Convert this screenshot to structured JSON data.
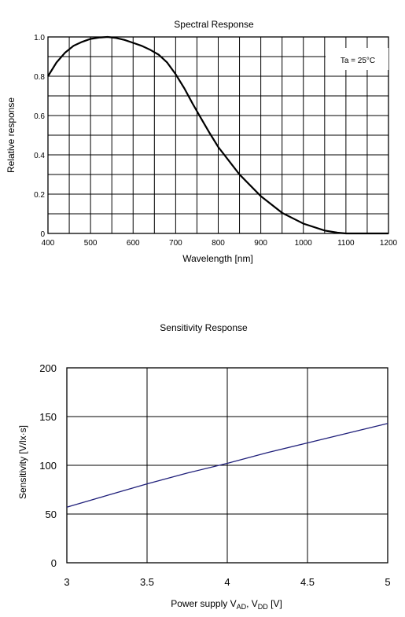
{
  "chart_data": [
    {
      "type": "line",
      "title": "Spectral Response",
      "xlabel": "Wavelength [nm]",
      "ylabel": "Relative response",
      "annotation": "Ta = 25°C",
      "xlim": [
        400,
        1200
      ],
      "ylim": [
        0,
        1.0
      ],
      "x_ticks": [
        "400",
        "500",
        "600",
        "700",
        "800",
        "900",
        "1000",
        "1100",
        "1200"
      ],
      "y_ticks": [
        "0",
        "0.2",
        "0.4",
        "0.6",
        "0.8",
        "1.0"
      ],
      "grid": true,
      "series": [
        {
          "x": [
            400,
            420,
            440,
            460,
            480,
            500,
            520,
            540,
            560,
            580,
            600,
            620,
            640,
            660,
            680,
            700,
            720,
            740,
            760,
            780,
            800,
            850,
            900,
            950,
            1000,
            1050,
            1080,
            1100,
            1150,
            1200
          ],
          "values": [
            0.8,
            0.87,
            0.92,
            0.955,
            0.975,
            0.99,
            0.997,
            1.0,
            0.995,
            0.985,
            0.97,
            0.955,
            0.935,
            0.91,
            0.87,
            0.81,
            0.74,
            0.66,
            0.585,
            0.51,
            0.44,
            0.3,
            0.19,
            0.105,
            0.05,
            0.015,
            0.004,
            0.0,
            0.0,
            0.0
          ]
        }
      ]
    },
    {
      "type": "line",
      "title": "Sensitivity Response",
      "xlabel": "Power supply V",
      "xlabel_sub1": "AD",
      "xlabel_mid": ", V",
      "xlabel_sub2": "DD",
      "xlabel_end": " [V]",
      "ylabel": "Sensitivity [V/lx·s]",
      "xlim": [
        3,
        5
      ],
      "ylim": [
        0,
        200
      ],
      "x_ticks": [
        "3",
        "3.5",
        "4",
        "4.5",
        "5"
      ],
      "y_ticks": [
        "0",
        "50",
        "100",
        "150",
        "200"
      ],
      "grid": true,
      "colors": {
        "line": "#1f1f7a"
      },
      "series": [
        {
          "x": [
            3.0,
            3.25,
            3.5,
            3.75,
            4.0,
            4.25,
            4.5,
            4.75,
            5.0
          ],
          "values": [
            57,
            69,
            81,
            92,
            102,
            113,
            123,
            133,
            143
          ]
        }
      ]
    }
  ]
}
